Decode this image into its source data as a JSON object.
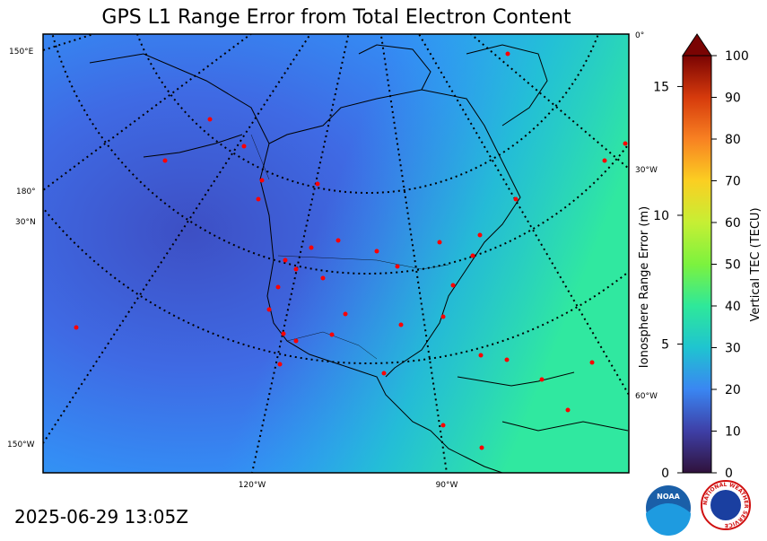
{
  "title": "GPS L1 Range Error from Total Electron Content",
  "timestamp": "2025-06-29 13:05Z",
  "graticule_labels": [
    "150°E",
    "180°",
    "30°N",
    "150°W",
    "0°",
    "30°W",
    "60°W",
    "120°W",
    "90°W"
  ],
  "colorbar": {
    "label": "Vertical TEC (TECU)",
    "lim": [
      0,
      100
    ],
    "ticks": [
      0,
      10,
      20,
      30,
      40,
      50,
      60,
      70,
      80,
      90,
      100
    ]
  },
  "range_axis": {
    "label": "Ionosphere Range Error (m)",
    "lim": [
      0,
      16.2
    ],
    "ticks": [
      0,
      5,
      10,
      15
    ]
  },
  "logos": {
    "noaa": "NOAA",
    "nws": "NATIONAL WEATHER SERVICE"
  }
}
